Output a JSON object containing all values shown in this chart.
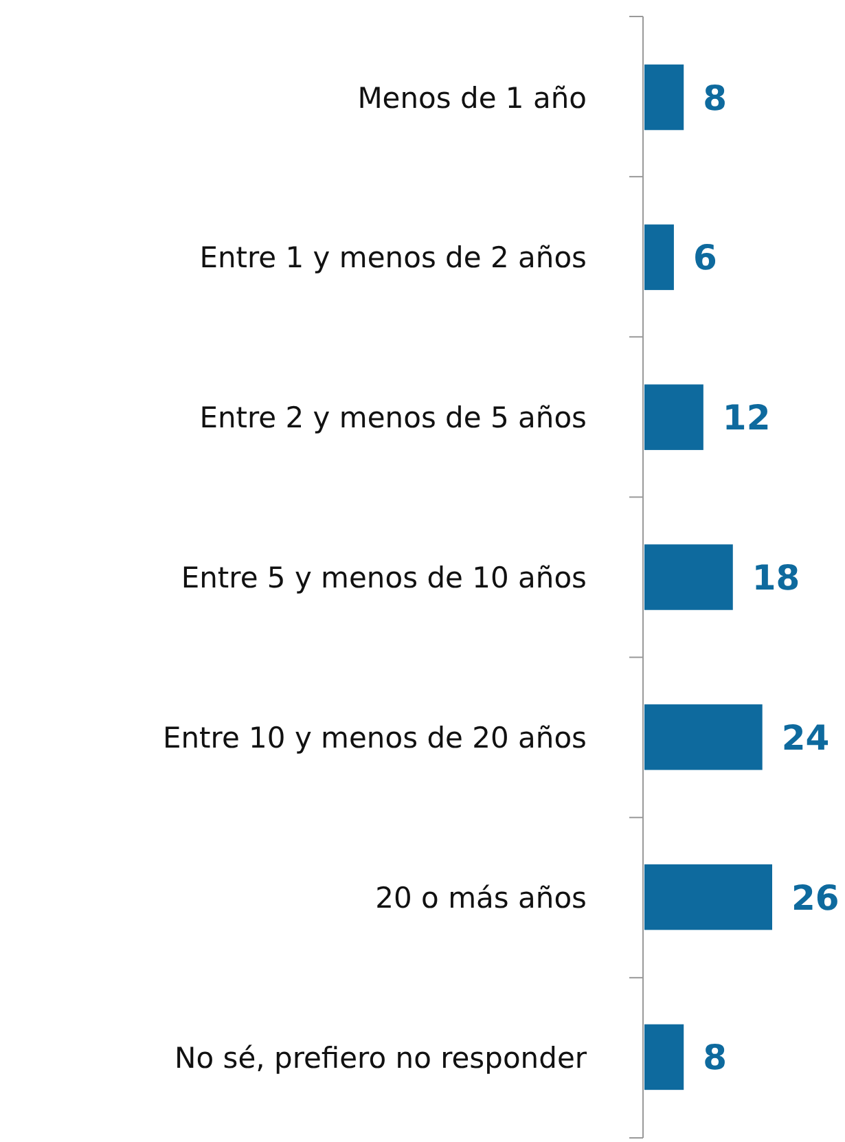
{
  "chart_data": {
    "type": "bar",
    "orientation": "horizontal",
    "data_labels": true,
    "categories": [
      "Menos de 1 año",
      "Entre 1 y menos de 2 años",
      "Entre 2 y menos de 5 años",
      "Entre 5 y menos de 10 años",
      "Entre 10 y menos de 20 años",
      "20 o más años",
      "No sé, prefiero no responder"
    ],
    "values": [
      8,
      6,
      12,
      18,
      24,
      26,
      8
    ],
    "color": "#0e6a9e"
  }
}
